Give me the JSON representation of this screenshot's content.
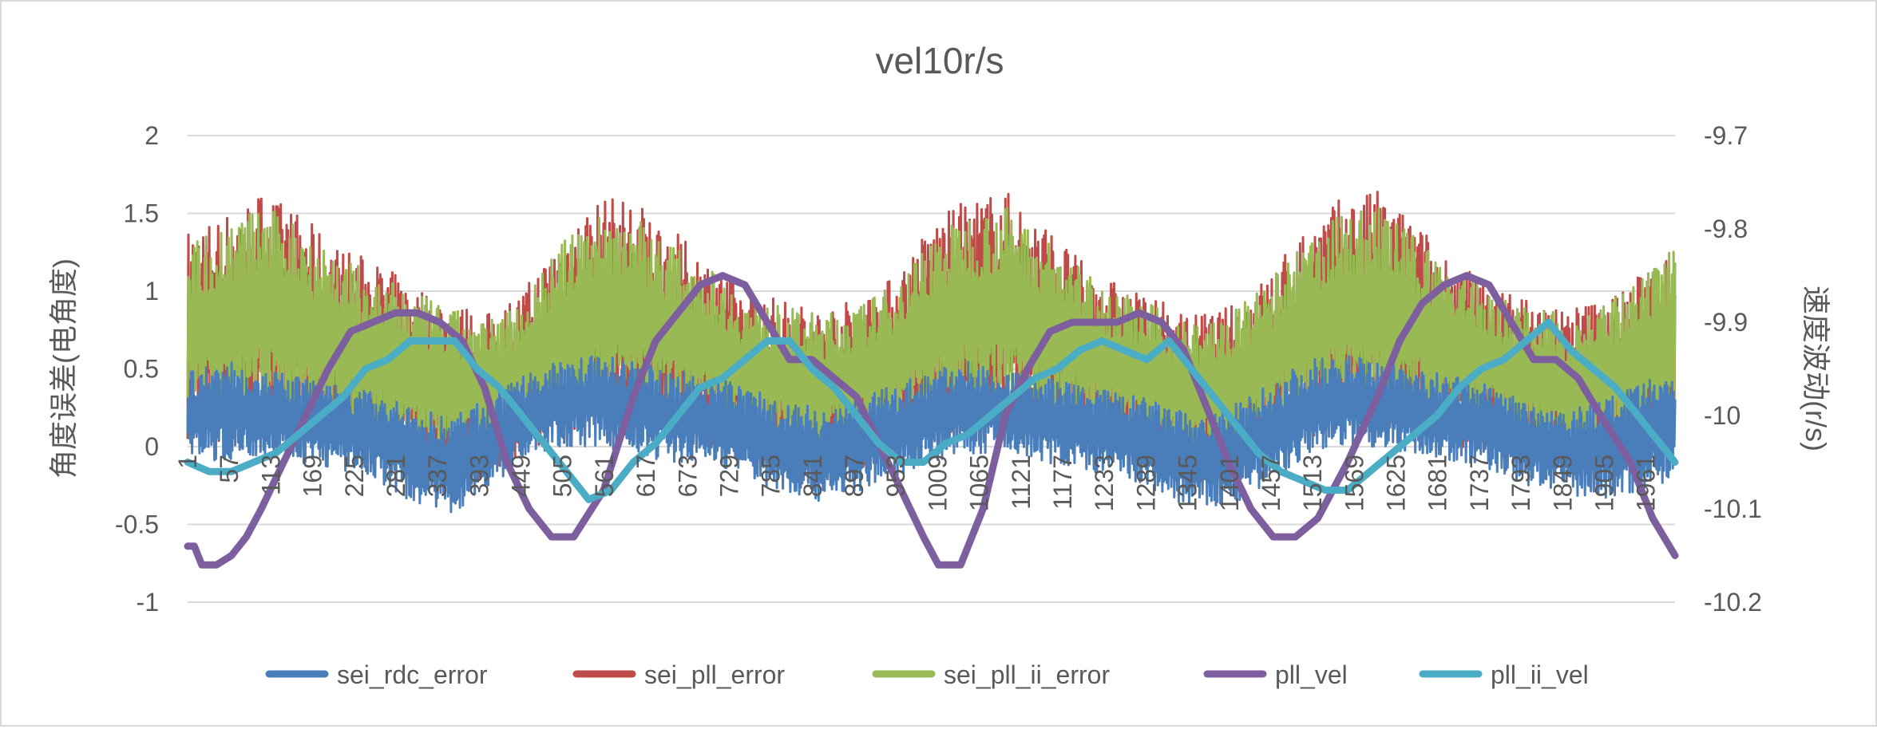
{
  "chart_data": {
    "type": "line",
    "title": "vel10r/s",
    "ylabel": "角度误差(电角度)",
    "y2label": "速度波动(r/s)",
    "xlabel": "",
    "x_range": [
      1,
      2000
    ],
    "ylim": [
      -1,
      2
    ],
    "y_ticks": [
      "2",
      "1.5",
      "1",
      "0.5",
      "0",
      "-0.5",
      "-1"
    ],
    "y2lim": [
      -10.2,
      -9.7
    ],
    "y2_ticks": [
      "-9.7",
      "-9.8",
      "-9.9",
      "-10",
      "-10.1",
      "-10.2"
    ],
    "x_ticks": [
      "1",
      "57",
      "113",
      "169",
      "225",
      "281",
      "337",
      "393",
      "449",
      "505",
      "561",
      "617",
      "673",
      "729",
      "785",
      "841",
      "897",
      "953",
      "1009",
      "1065",
      "1121",
      "1177",
      "1233",
      "1289",
      "1345",
      "1401",
      "1457",
      "1513",
      "1569",
      "1625",
      "1681",
      "1737",
      "1793",
      "1849",
      "1905",
      "1961"
    ],
    "grid": true,
    "legend_position": "bottom",
    "series": [
      {
        "name": "sei_rdc_error",
        "axis": "primary",
        "color": "#4a7ebb",
        "x": [
          1,
          50,
          100,
          150,
          200,
          250,
          300,
          350,
          400,
          450,
          500,
          550,
          600,
          650,
          700,
          750,
          800,
          850,
          900,
          950,
          1000,
          1050,
          1100,
          1150,
          1200,
          1250,
          1300,
          1350,
          1400,
          1450,
          1500,
          1550,
          1600,
          1650,
          1700,
          1750,
          1800,
          1850,
          1900,
          1950,
          2000
        ],
        "low": [
          -0.05,
          -0.1,
          -0.05,
          -0.1,
          -0.15,
          -0.2,
          -0.35,
          -0.45,
          -0.3,
          -0.1,
          0.0,
          0.0,
          -0.05,
          -0.1,
          -0.1,
          -0.2,
          -0.3,
          -0.35,
          -0.3,
          -0.2,
          -0.1,
          -0.05,
          -0.05,
          -0.1,
          -0.15,
          -0.2,
          -0.3,
          -0.4,
          -0.4,
          -0.25,
          -0.1,
          0.0,
          0.0,
          -0.05,
          -0.1,
          -0.15,
          -0.25,
          -0.3,
          -0.35,
          -0.3,
          -0.2
        ],
        "high": [
          0.5,
          0.55,
          0.5,
          0.45,
          0.4,
          0.35,
          0.25,
          0.2,
          0.3,
          0.45,
          0.55,
          0.6,
          0.55,
          0.5,
          0.45,
          0.4,
          0.3,
          0.25,
          0.3,
          0.4,
          0.5,
          0.55,
          0.5,
          0.45,
          0.4,
          0.35,
          0.3,
          0.2,
          0.25,
          0.4,
          0.55,
          0.6,
          0.55,
          0.5,
          0.45,
          0.4,
          0.3,
          0.25,
          0.3,
          0.4,
          0.5
        ]
      },
      {
        "name": "sei_pll_error",
        "axis": "primary",
        "color": "#be4b48",
        "x": [
          1,
          50,
          100,
          150,
          200,
          250,
          300,
          350,
          400,
          450,
          500,
          550,
          600,
          650,
          700,
          750,
          800,
          850,
          900,
          950,
          1000,
          1050,
          1100,
          1150,
          1200,
          1250,
          1300,
          1350,
          1400,
          1450,
          1500,
          1550,
          1600,
          1650,
          1700,
          1750,
          1800,
          1850,
          1900,
          1950,
          2000
        ],
        "low": [
          0.05,
          0.0,
          0.0,
          0.0,
          -0.05,
          -0.1,
          -0.2,
          -0.3,
          -0.2,
          -0.05,
          0.05,
          0.1,
          0.1,
          0.05,
          0.0,
          -0.05,
          -0.15,
          -0.2,
          -0.15,
          -0.05,
          0.05,
          0.1,
          0.1,
          0.05,
          0.0,
          -0.05,
          -0.15,
          -0.25,
          -0.25,
          -0.1,
          0.05,
          0.1,
          0.1,
          0.05,
          0.0,
          -0.05,
          -0.1,
          -0.15,
          -0.2,
          -0.15,
          -0.05
        ],
        "high": [
          1.4,
          1.5,
          1.65,
          1.5,
          1.3,
          1.2,
          1.05,
          0.95,
          0.85,
          1.0,
          1.35,
          1.6,
          1.6,
          1.4,
          1.2,
          1.0,
          0.95,
          0.9,
          0.95,
          1.1,
          1.45,
          1.6,
          1.65,
          1.45,
          1.2,
          1.05,
          0.95,
          0.85,
          0.9,
          1.1,
          1.4,
          1.6,
          1.65,
          1.45,
          1.2,
          1.05,
          0.95,
          0.9,
          0.95,
          1.1,
          1.35
        ]
      },
      {
        "name": "sei_pll_ii_error",
        "axis": "primary",
        "color": "#98b954",
        "x": [
          1,
          50,
          100,
          150,
          200,
          250,
          300,
          350,
          400,
          450,
          500,
          550,
          600,
          650,
          700,
          750,
          800,
          850,
          900,
          950,
          1000,
          1050,
          1100,
          1150,
          1200,
          1250,
          1300,
          1350,
          1400,
          1450,
          1500,
          1550,
          1600,
          1650,
          1700,
          1750,
          1800,
          1850,
          1900,
          1950,
          2000
        ],
        "low": [
          0.2,
          0.15,
          0.2,
          0.15,
          0.1,
          0.05,
          -0.05,
          -0.15,
          -0.05,
          0.1,
          0.2,
          0.25,
          0.25,
          0.2,
          0.15,
          0.05,
          0.0,
          -0.05,
          0.0,
          0.1,
          0.2,
          0.25,
          0.25,
          0.2,
          0.15,
          0.05,
          -0.05,
          -0.1,
          -0.1,
          0.05,
          0.2,
          0.25,
          0.25,
          0.2,
          0.15,
          0.1,
          0.0,
          -0.05,
          -0.05,
          0.05,
          0.15
        ],
        "high": [
          1.3,
          1.45,
          1.55,
          1.45,
          1.25,
          1.1,
          1.0,
          0.9,
          0.8,
          0.95,
          1.3,
          1.5,
          1.5,
          1.3,
          1.15,
          0.95,
          0.9,
          0.85,
          0.9,
          1.05,
          1.35,
          1.5,
          1.55,
          1.35,
          1.15,
          1.0,
          0.9,
          0.8,
          0.85,
          1.05,
          1.3,
          1.5,
          1.55,
          1.35,
          1.15,
          1.0,
          0.9,
          0.85,
          0.9,
          1.05,
          1.3
        ]
      },
      {
        "name": "pll_vel",
        "axis": "secondary",
        "color": "#7d5fa0",
        "x": [
          1,
          10,
          20,
          40,
          60,
          80,
          100,
          130,
          160,
          190,
          220,
          250,
          280,
          310,
          340,
          370,
          400,
          430,
          460,
          490,
          520,
          560,
          600,
          630,
          660,
          690,
          720,
          750,
          780,
          810,
          840,
          870,
          900,
          930,
          960,
          990,
          1010,
          1040,
          1070,
          1100,
          1130,
          1160,
          1190,
          1220,
          1250,
          1280,
          1310,
          1340,
          1370,
          1400,
          1430,
          1460,
          1490,
          1520,
          1560,
          1600,
          1630,
          1660,
          1690,
          1720,
          1750,
          1780,
          1810,
          1840,
          1870,
          1900,
          1940,
          1970,
          2000
        ],
        "y": [
          -10.14,
          -10.14,
          -10.16,
          -10.16,
          -10.15,
          -10.13,
          -10.1,
          -10.05,
          -10.0,
          -9.95,
          -9.91,
          -9.9,
          -9.89,
          -9.89,
          -9.9,
          -9.92,
          -9.97,
          -10.05,
          -10.1,
          -10.13,
          -10.13,
          -10.08,
          -9.98,
          -9.92,
          -9.89,
          -9.86,
          -9.85,
          -9.86,
          -9.9,
          -9.94,
          -9.94,
          -9.96,
          -9.98,
          -10.03,
          -10.08,
          -10.13,
          -10.16,
          -10.16,
          -10.1,
          -10.0,
          -9.95,
          -9.91,
          -9.9,
          -9.9,
          -9.9,
          -9.89,
          -9.9,
          -9.93,
          -9.99,
          -10.05,
          -10.1,
          -10.13,
          -10.13,
          -10.11,
          -10.05,
          -9.98,
          -9.92,
          -9.88,
          -9.86,
          -9.85,
          -9.86,
          -9.9,
          -9.94,
          -9.94,
          -9.96,
          -10.0,
          -10.05,
          -10.11,
          -10.15
        ]
      },
      {
        "name": "pll_ii_vel",
        "axis": "secondary",
        "color": "#4bacc6",
        "x": [
          1,
          30,
          60,
          90,
          120,
          150,
          180,
          210,
          240,
          270,
          300,
          330,
          360,
          390,
          420,
          450,
          480,
          510,
          540,
          570,
          600,
          630,
          660,
          690,
          720,
          750,
          780,
          810,
          840,
          870,
          900,
          930,
          960,
          990,
          1020,
          1050,
          1080,
          1110,
          1140,
          1170,
          1200,
          1230,
          1260,
          1290,
          1320,
          1350,
          1380,
          1410,
          1440,
          1470,
          1500,
          1530,
          1560,
          1590,
          1620,
          1650,
          1680,
          1710,
          1740,
          1770,
          1800,
          1830,
          1860,
          1890,
          1920,
          1950,
          1980,
          2000
        ],
        "y": [
          -10.05,
          -10.06,
          -10.06,
          -10.05,
          -10.04,
          -10.02,
          -10.0,
          -9.98,
          -9.95,
          -9.94,
          -9.92,
          -9.92,
          -9.92,
          -9.95,
          -9.97,
          -10.0,
          -10.03,
          -10.06,
          -10.09,
          -10.08,
          -10.05,
          -10.03,
          -10.0,
          -9.97,
          -9.96,
          -9.94,
          -9.92,
          -9.92,
          -9.95,
          -9.97,
          -10.0,
          -10.03,
          -10.05,
          -10.05,
          -10.03,
          -10.02,
          -10.0,
          -9.98,
          -9.96,
          -9.95,
          -9.93,
          -9.92,
          -9.93,
          -9.94,
          -9.92,
          -9.95,
          -9.98,
          -10.01,
          -10.04,
          -10.06,
          -10.07,
          -10.08,
          -10.08,
          -10.06,
          -10.04,
          -10.02,
          -10.0,
          -9.97,
          -9.95,
          -9.94,
          -9.92,
          -9.9,
          -9.93,
          -9.95,
          -9.97,
          -10.0,
          -10.03,
          -10.05
        ]
      }
    ]
  }
}
